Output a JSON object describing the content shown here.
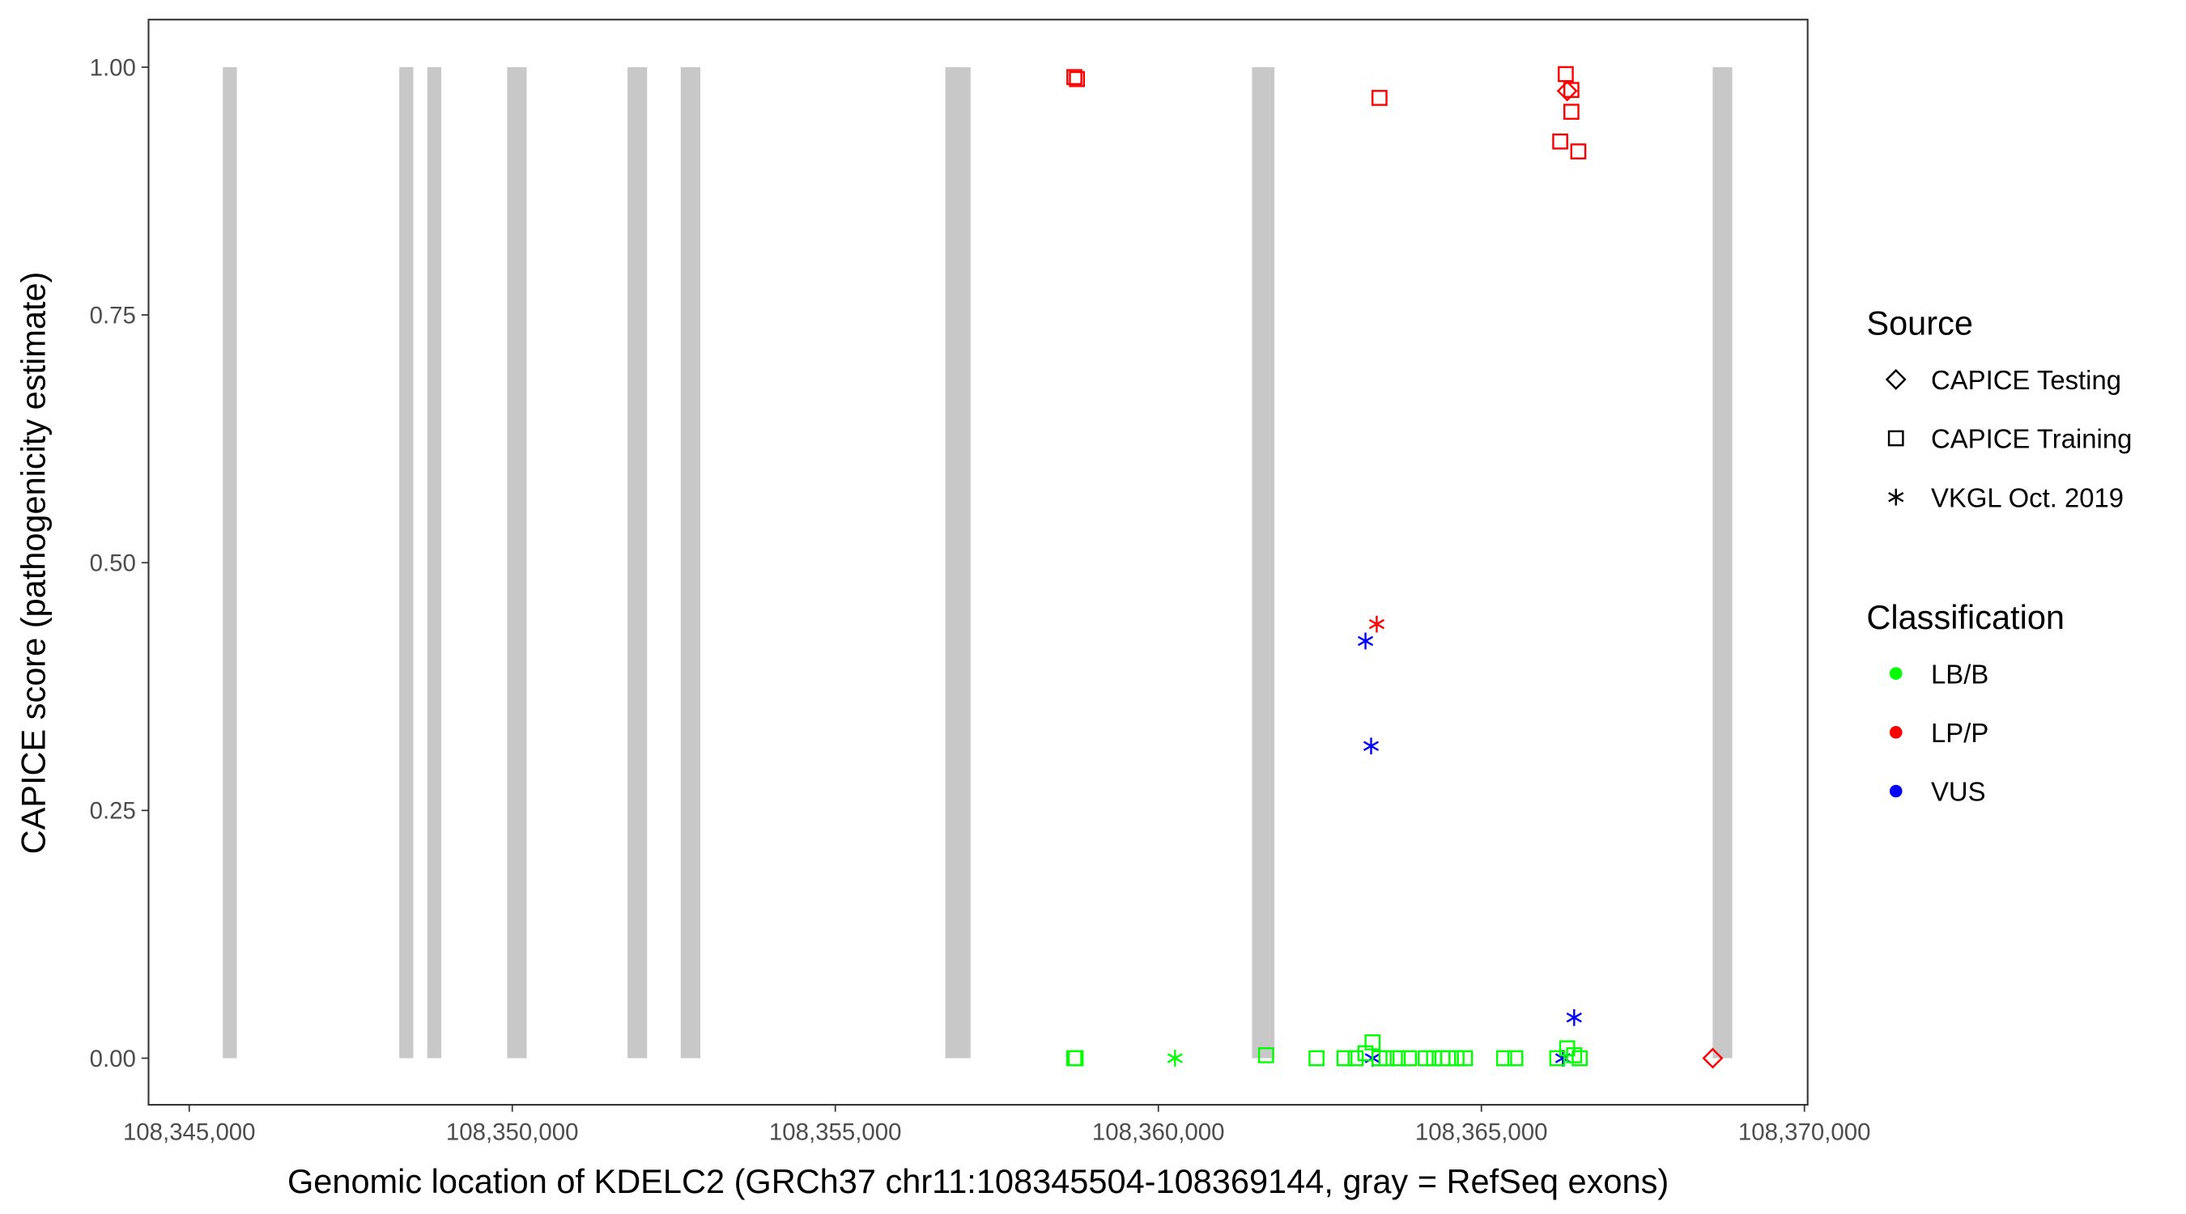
{
  "chart_data": {
    "type": "scatter",
    "x_label": "Genomic location of KDELC2 (GRCh37 chr11:108345504-108369144, gray = RefSeq exons)",
    "y_label": "CAPICE score (pathogenicity estimate)",
    "xlim": [
      108344370,
      108370050
    ],
    "ylim": [
      -0.047,
      1.048
    ],
    "xticks": [
      {
        "value": 108345000,
        "label": "108,345,000"
      },
      {
        "value": 108350000,
        "label": "108,350,000"
      },
      {
        "value": 108355000,
        "label": "108,355,000"
      },
      {
        "value": 108360000,
        "label": "108,360,000"
      },
      {
        "value": 108365000,
        "label": "108,365,000"
      },
      {
        "value": 108370000,
        "label": "108,370,000"
      }
    ],
    "yticks": [
      {
        "value": 0,
        "label": "0.00"
      },
      {
        "value": 0.25,
        "label": "0.25"
      },
      {
        "value": 0.5,
        "label": "0.50"
      },
      {
        "value": 0.75,
        "label": "0.75"
      },
      {
        "value": 1,
        "label": "1.00"
      }
    ],
    "exon_color": "#c8c8c8",
    "exons": [
      [
        108345520,
        108345737
      ],
      [
        108348251,
        108348468
      ],
      [
        108348684,
        108348901
      ],
      [
        108349920,
        108350223
      ],
      [
        108351784,
        108352087
      ],
      [
        108352607,
        108352911
      ],
      [
        108356703,
        108357094
      ],
      [
        108361450,
        108361797
      ],
      [
        108368580,
        108368884
      ]
    ],
    "shape_title": "Source",
    "shapes": [
      {
        "name": "CAPICE Testing",
        "shape": "diamond"
      },
      {
        "name": "CAPICE Training",
        "shape": "square"
      },
      {
        "name": "VKGL Oct. 2019",
        "shape": "asterisk"
      }
    ],
    "color_title": "Classification",
    "classes": [
      {
        "name": "LB/B",
        "color": "#00ff00"
      },
      {
        "name": "LP/P",
        "color": "#ff0000"
      },
      {
        "name": "VUS",
        "color": "#0000ff"
      }
    ],
    "points": {
      "x": [
        108358700,
        108358740,
        108363423,
        108366306,
        108366393,
        108366393,
        108366220,
        108366500,
        108366328,
        108368581,
        108363380,
        108363206,
        108363293,
        108366436,
        108366262,
        108363315,
        108360258,
        108358698,
        108358720,
        108361667,
        108362448,
        108362881,
        108363054,
        108363206,
        108363315,
        108363423,
        108363532,
        108363705,
        108363878,
        108364138,
        108364268,
        108364398,
        108364485,
        108364615,
        108364745,
        108365352,
        108365525,
        108366175,
        108366328,
        108366436,
        108366522
      ],
      "y": [
        0.99,
        0.988,
        0.969,
        0.993,
        0.977,
        0.955,
        0.925,
        0.915,
        0.976,
        0,
        0.438,
        0.421,
        0.315,
        0.041,
        0,
        0,
        0,
        0,
        0,
        0.003,
        0,
        0,
        0,
        0.005,
        0.016,
        0,
        0,
        0,
        0,
        0,
        0,
        0,
        0,
        0,
        0,
        0,
        0,
        0,
        0.01,
        0.003,
        0
      ],
      "source": [
        "CAPICE Training",
        "CAPICE Training",
        "CAPICE Training",
        "CAPICE Training",
        "CAPICE Training",
        "CAPICE Training",
        "CAPICE Training",
        "CAPICE Training",
        "CAPICE Testing",
        "CAPICE Testing",
        "VKGL Oct. 2019",
        "VKGL Oct. 2019",
        "VKGL Oct. 2019",
        "VKGL Oct. 2019",
        "VKGL Oct. 2019",
        "VKGL Oct. 2019",
        "VKGL Oct. 2019",
        "CAPICE Training",
        "CAPICE Training",
        "CAPICE Training",
        "CAPICE Training",
        "CAPICE Training",
        "CAPICE Training",
        "CAPICE Training",
        "CAPICE Training",
        "CAPICE Training",
        "CAPICE Training",
        "CAPICE Training",
        "CAPICE Training",
        "CAPICE Training",
        "CAPICE Training",
        "CAPICE Training",
        "CAPICE Training",
        "CAPICE Training",
        "CAPICE Training",
        "CAPICE Training",
        "CAPICE Training",
        "CAPICE Training",
        "CAPICE Training",
        "CAPICE Training",
        "CAPICE Training"
      ],
      "classification": [
        "LP/P",
        "LP/P",
        "LP/P",
        "LP/P",
        "LP/P",
        "LP/P",
        "LP/P",
        "LP/P",
        "LP/P",
        "LP/P",
        "LP/P",
        "VUS",
        "VUS",
        "VUS",
        "VUS",
        "VUS",
        "LB/B",
        "LB/B",
        "LB/B",
        "LB/B",
        "LB/B",
        "LB/B",
        "LB/B",
        "LB/B",
        "LB/B",
        "LB/B",
        "LB/B",
        "LB/B",
        "LB/B",
        "LB/B",
        "LB/B",
        "LB/B",
        "LB/B",
        "LB/B",
        "LB/B",
        "LB/B",
        "LB/B",
        "LB/B",
        "LB/B",
        "LB/B",
        "LB/B"
      ]
    }
  }
}
